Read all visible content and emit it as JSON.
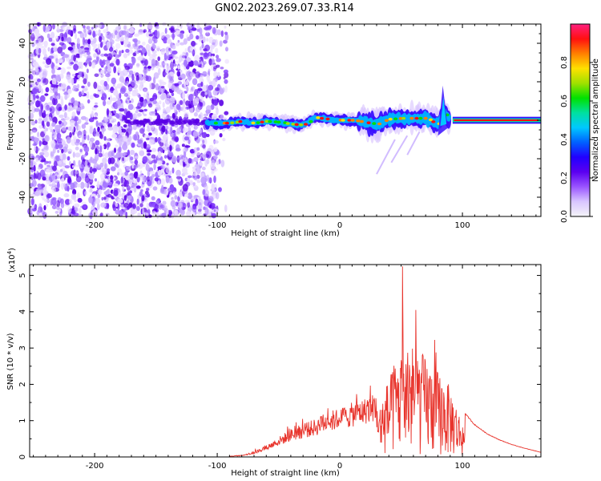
{
  "title": "GN02.2023.269.07.33.R14",
  "chart_data": [
    {
      "type": "heatmap",
      "panel": "spectrogram",
      "xlabel": "Height of straight line (km)",
      "ylabel": "Frequency (Hz)",
      "xlim": [
        -253,
        164
      ],
      "ylim": [
        -50,
        50
      ],
      "xticks": [
        -200,
        -100,
        0,
        100
      ],
      "yticks": [
        -40,
        -20,
        0,
        20,
        40
      ],
      "ridge": {
        "x": [
          -108,
          -100,
          -90,
          -80,
          -70,
          -60,
          -50,
          -40,
          -30,
          -20,
          -10,
          0,
          10,
          20,
          30,
          40,
          50,
          60,
          70,
          80,
          85,
          90,
          100,
          120,
          140,
          164
        ],
        "y": [
          -1.5,
          -1.5,
          -1.5,
          -0.5,
          -1.5,
          -0.5,
          -1,
          -2,
          -2.5,
          1.5,
          0.5,
          0,
          0,
          -1,
          -2,
          0.5,
          1,
          1,
          1,
          -2,
          4,
          0,
          0,
          0,
          0,
          0
        ]
      },
      "noise_region_x": [
        -253,
        -100
      ],
      "colorbar": {
        "label": "Normalized spectral amplitude",
        "range": [
          0,
          1
        ],
        "ticks": [
          "0.0",
          "0.2",
          "0.4",
          "0.6",
          "0.8"
        ],
        "colors": [
          "#f4f4f8",
          "#d9c6ff",
          "#9a55ff",
          "#5b00f0",
          "#2200ff",
          "#0060ff",
          "#00c8ff",
          "#00e0a0",
          "#00e000",
          "#a0e000",
          "#ffe000",
          "#ff8000",
          "#ff1010",
          "#ff2080"
        ]
      }
    },
    {
      "type": "line",
      "panel": "snr",
      "xlabel": "Height of straight line (km)",
      "ylabel": "SNR (10 * v/v)",
      "y_multiplier": "(x10",
      "y_multiplier_exp": "4",
      "xlim": [
        -253,
        164
      ],
      "ylim": [
        0,
        5.3
      ],
      "xticks": [
        -200,
        -100,
        0,
        100
      ],
      "yticks": [
        0,
        1,
        2,
        3,
        4,
        5
      ],
      "line_color": "#e8342c",
      "envelope": {
        "x": [
          -253,
          -100,
          -90,
          -80,
          -70,
          -60,
          -50,
          -40,
          -30,
          -20,
          -10,
          0,
          10,
          20,
          30,
          40,
          50,
          60,
          70,
          80,
          90,
          100,
          110,
          120,
          130,
          140,
          150,
          164
        ],
        "y": [
          0,
          0,
          0.02,
          0.05,
          0.15,
          0.32,
          0.55,
          0.78,
          0.92,
          1.05,
          1.25,
          1.35,
          1.5,
          1.62,
          1.8,
          2.9,
          3.9,
          4.2,
          3.7,
          3.2,
          2.6,
          1.3,
          0.9,
          0.65,
          0.48,
          0.35,
          0.25,
          0.13
        ]
      },
      "peak": {
        "x": 51,
        "y": 5.25
      }
    }
  ]
}
